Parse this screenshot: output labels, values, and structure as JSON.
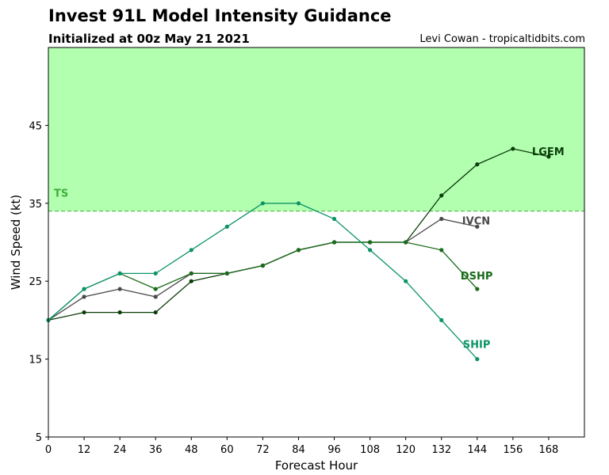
{
  "chart_data": {
    "type": "line",
    "title": "Invest 91L Model Intensity Guidance",
    "subtitle": "Initialized at 00z May 21 2021",
    "credit": "Levi Cowan - tropicaltidbits.com",
    "xlabel": "Forecast Hour",
    "ylabel": "Wind Speed (kt)",
    "xlim": [
      0,
      180
    ],
    "ylim": [
      5,
      55
    ],
    "xticks": [
      0,
      12,
      24,
      36,
      48,
      60,
      72,
      84,
      96,
      108,
      120,
      132,
      144,
      156,
      168
    ],
    "yticks": [
      5,
      15,
      25,
      35,
      45
    ],
    "ts_threshold": 34,
    "ts_label": "TS",
    "ts_region_color": "#b3ffb0",
    "ts_line_color": "#5cbf5c",
    "ts_label_color": "#3cae3c",
    "grid": false,
    "series": [
      {
        "name": "LGEM",
        "color": "#0a3d0a",
        "x": [
          0,
          12,
          24,
          36,
          48,
          60,
          72,
          84,
          96,
          108,
          120,
          132,
          144,
          156,
          168
        ],
        "y": [
          20,
          21,
          21,
          21,
          25,
          26,
          27,
          29,
          30,
          30,
          30,
          36,
          40,
          42,
          41
        ]
      },
      {
        "name": "IVCN",
        "color": "#4a4a4a",
        "x": [
          0,
          12,
          24,
          36,
          48,
          60,
          72,
          84,
          96,
          108,
          120,
          132,
          144
        ],
        "y": [
          20,
          23,
          24,
          23,
          26,
          26,
          27,
          29,
          30,
          30,
          30,
          33,
          32
        ]
      },
      {
        "name": "DSHP",
        "color": "#1a6b1a",
        "x": [
          0,
          12,
          24,
          36,
          48,
          60,
          72,
          84,
          96,
          108,
          120,
          132,
          144
        ],
        "y": [
          20,
          24,
          26,
          24,
          26,
          26,
          27,
          29,
          30,
          30,
          30,
          29,
          24
        ]
      },
      {
        "name": "SHIP",
        "color": "#0d9466",
        "x": [
          0,
          12,
          24,
          36,
          48,
          60,
          72,
          84,
          96,
          108,
          120,
          132,
          144
        ],
        "y": [
          20,
          24,
          26,
          26,
          29,
          32,
          35,
          35,
          33,
          29,
          25,
          20,
          15
        ]
      }
    ]
  }
}
